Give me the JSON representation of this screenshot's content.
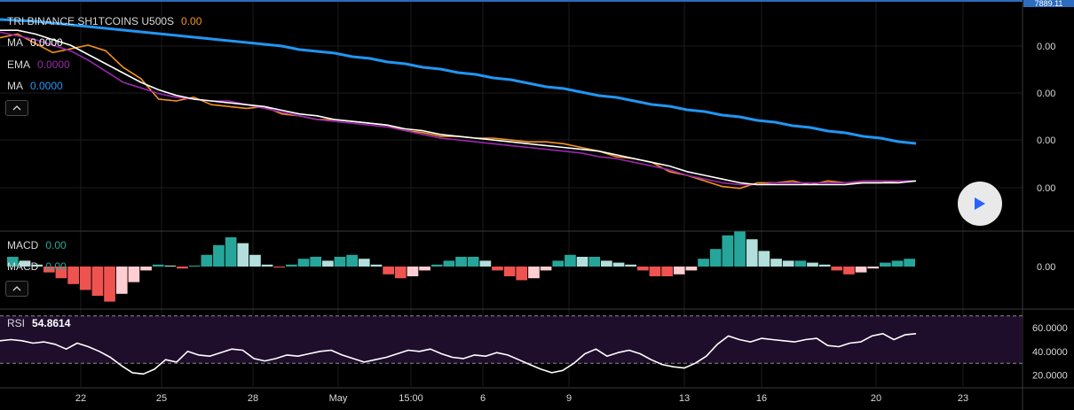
{
  "price_badge": "7889.11",
  "legend": {
    "symbol": "TRI BINANCE SH1TCOINS U500S",
    "symbol_value": "0.00",
    "ma1_label": "MA",
    "ma1_value": "0.0000",
    "ema_label": "EMA",
    "ema_value": "0.0000",
    "ma2_label": "MA",
    "ma2_value": "0.0000"
  },
  "macd_legend": {
    "label1": "MACD",
    "value1": "0.00",
    "label2": "MACD",
    "value2": "0.00"
  },
  "rsi_legend": {
    "label": "RSI",
    "value": "54.8614"
  },
  "price_axis": [
    "0.00",
    "0.00",
    "0.00",
    "0.00"
  ],
  "macd_axis": [
    "0.00"
  ],
  "rsi_axis": [
    "60.0000",
    "40.0000",
    "20.0000"
  ],
  "time_axis": [
    "22",
    "25",
    "28",
    "May",
    "15:00",
    "6",
    "9",
    "13",
    "16",
    "20",
    "23"
  ],
  "colors": {
    "background": "#000000",
    "grid": "#1c1c1c",
    "price": "#f7931a",
    "ema": "#9c27b0",
    "ma_white": "#ffffff",
    "ma_blue": "#2196f3",
    "hist_pos_strong": "#26a69a",
    "hist_pos_weak": "#b2dfdb",
    "hist_neg_strong": "#ef5350",
    "hist_neg_weak": "#ffcdd2",
    "rsi_line": "#ffffff",
    "rsi_band": "#1e0e2c"
  },
  "icons": {
    "collapse": "chevron-up-icon",
    "play": "play-icon"
  },
  "chart_data": {
    "type": "line",
    "price_pane": {
      "series": [
        {
          "values": [
            0.94,
            0.96,
            0.91,
            0.86,
            0.88,
            0.9,
            0.87,
            0.78,
            0.72,
            0.61,
            0.6,
            0.62,
            0.58,
            0.57,
            0.56,
            0.57,
            0.53,
            0.52,
            0.5,
            0.5,
            0.49,
            0.48,
            0.47,
            0.44,
            0.43,
            0.41,
            0.41,
            0.4,
            0.4,
            0.39,
            0.38,
            0.38,
            0.37,
            0.35,
            0.33,
            0.3,
            0.29,
            0.27,
            0.22,
            0.2,
            0.17,
            0.14,
            0.13,
            0.16,
            0.16,
            0.17,
            0.15,
            0.17,
            0.16,
            0.16,
            0.16,
            0.17,
            0.17
          ]
        },
        {
          "values": [
            0.97,
            0.95,
            0.93,
            0.9,
            0.87,
            0.82,
            0.76,
            0.7,
            0.67,
            0.64,
            0.62,
            0.61,
            0.6,
            0.6,
            0.58,
            0.56,
            0.54,
            0.52,
            0.5,
            0.49,
            0.48,
            0.47,
            0.46,
            0.44,
            0.42,
            0.4,
            0.39,
            0.38,
            0.37,
            0.36,
            0.35,
            0.34,
            0.33,
            0.32,
            0.3,
            0.29,
            0.27,
            0.25,
            0.23,
            0.2,
            0.18,
            0.16,
            0.15,
            0.15,
            0.16,
            0.16,
            0.16,
            0.16,
            0.16,
            0.17,
            0.17,
            0.17,
            0.17
          ]
        },
        {
          "values": [
            0.98,
            0.98,
            0.96,
            0.93,
            0.9,
            0.85,
            0.8,
            0.75,
            0.7,
            0.66,
            0.63,
            0.61,
            0.6,
            0.59,
            0.58,
            0.57,
            0.55,
            0.53,
            0.52,
            0.5,
            0.49,
            0.48,
            0.47,
            0.45,
            0.44,
            0.42,
            0.41,
            0.4,
            0.39,
            0.38,
            0.37,
            0.36,
            0.35,
            0.34,
            0.33,
            0.31,
            0.29,
            0.27,
            0.25,
            0.22,
            0.2,
            0.18,
            0.16,
            0.15,
            0.15,
            0.15,
            0.15,
            0.15,
            0.15,
            0.16,
            0.16,
            0.16,
            0.17
          ]
        },
        {
          "values": [
            0.99,
            0.985,
            0.98,
            0.97,
            0.96,
            0.95,
            0.94,
            0.93,
            0.92,
            0.91,
            0.9,
            0.89,
            0.88,
            0.87,
            0.86,
            0.85,
            0.84,
            0.82,
            0.81,
            0.8,
            0.78,
            0.77,
            0.75,
            0.74,
            0.72,
            0.71,
            0.69,
            0.68,
            0.66,
            0.65,
            0.63,
            0.61,
            0.6,
            0.58,
            0.56,
            0.55,
            0.53,
            0.51,
            0.5,
            0.48,
            0.47,
            0.45,
            0.44,
            0.42,
            0.41,
            0.39,
            0.38,
            0.36,
            0.35,
            0.33,
            0.32,
            0.3,
            0.29
          ]
        }
      ]
    },
    "macd_pane": {
      "series": [
        {
          "values": [
            0.5,
            0.3,
            0.1,
            -0.3,
            -0.6,
            -0.9,
            -1.2,
            -1.5,
            -1.8,
            -1.4,
            -0.8,
            -0.2,
            0.1,
            0.05,
            -0.1,
            0.05,
            0.6,
            1.1,
            1.5,
            1.2,
            0.6,
            0.1,
            -0.05,
            0.1,
            0.4,
            0.5,
            0.3,
            0.5,
            0.6,
            0.4,
            0.1,
            -0.4,
            -0.6,
            -0.5,
            -0.2,
            0.1,
            0.3,
            0.5,
            0.5,
            0.3,
            -0.2,
            -0.5,
            -0.7,
            -0.6,
            -0.2,
            0.3,
            0.6,
            0.5,
            0.5,
            0.3,
            0.2,
            0.1,
            -0.2,
            -0.5,
            -0.5,
            -0.4,
            -0.2,
            0.4,
            0.9,
            1.6,
            1.8,
            1.4,
            0.8,
            0.4,
            0.3,
            0.3,
            0.2,
            0.1,
            -0.2,
            -0.4,
            -0.3,
            -0.1,
            0.2,
            0.3,
            0.4
          ]
        }
      ]
    },
    "rsi_pane": {
      "ylim": [
        10,
        75
      ],
      "upper_band": 70,
      "lower_band": 30,
      "series": [
        {
          "values": [
            49,
            50,
            49,
            47,
            48,
            46,
            42,
            47,
            44,
            40,
            35,
            28,
            22,
            21,
            25,
            33,
            31,
            40,
            37,
            36,
            39,
            42,
            41,
            34,
            32,
            34,
            37,
            36,
            38,
            40,
            41,
            37,
            34,
            31,
            33,
            35,
            38,
            41,
            40,
            42,
            38,
            35,
            34,
            37,
            36,
            39,
            37,
            33,
            29,
            25,
            22,
            24,
            30,
            38,
            42,
            36,
            39,
            41,
            38,
            33,
            29,
            27,
            26,
            30,
            36,
            46,
            53,
            50,
            48,
            51,
            50,
            49,
            48,
            50,
            51,
            45,
            44,
            47,
            48,
            53,
            55,
            50,
            54,
            55
          ]
        }
      ]
    }
  }
}
